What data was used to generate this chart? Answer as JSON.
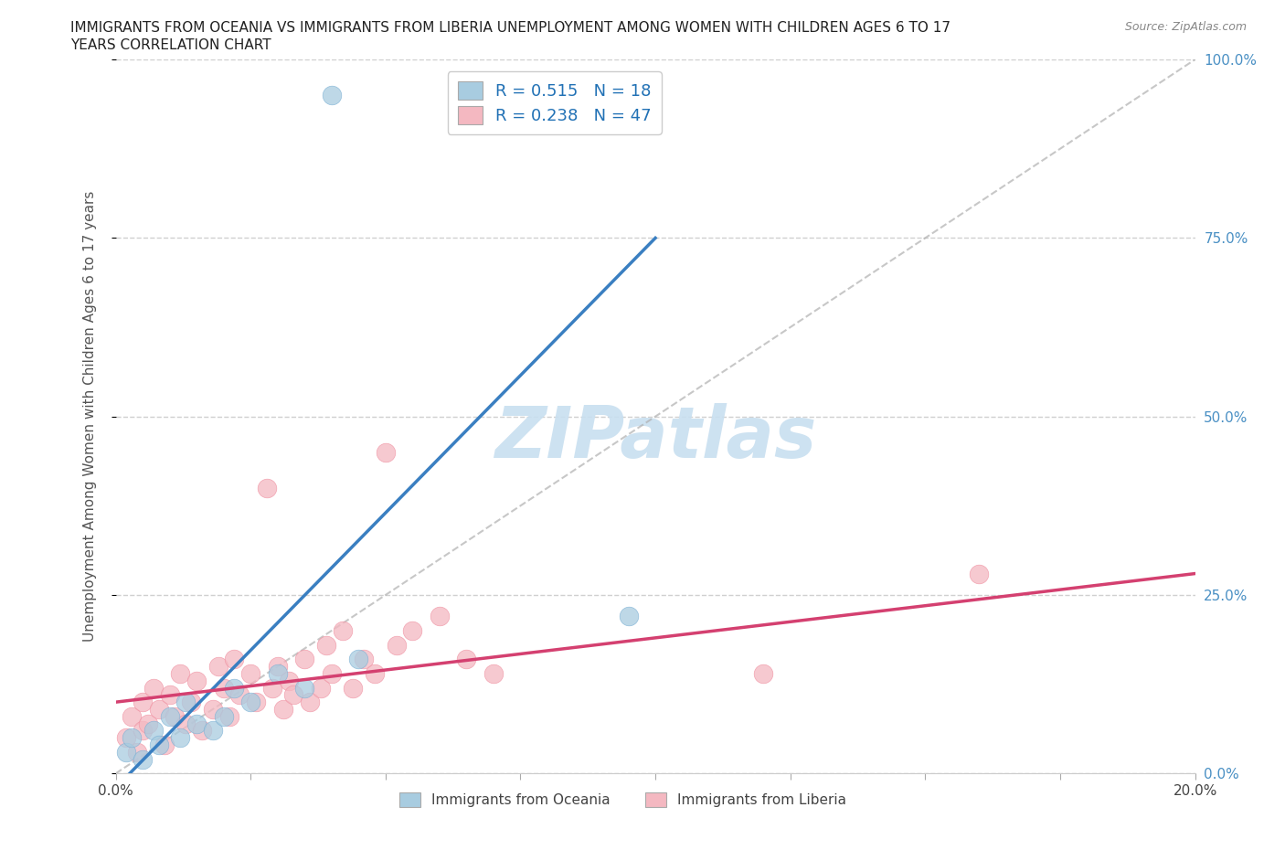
{
  "title_line1": "IMMIGRANTS FROM OCEANIA VS IMMIGRANTS FROM LIBERIA UNEMPLOYMENT AMONG WOMEN WITH CHILDREN AGES 6 TO 17",
  "title_line2": "YEARS CORRELATION CHART",
  "source": "Source: ZipAtlas.com",
  "ylabel": "Unemployment Among Women with Children Ages 6 to 17 years",
  "xlabel_oceania": "Immigrants from Oceania",
  "xlabel_liberia": "Immigrants from Liberia",
  "xlim": [
    0.0,
    0.2
  ],
  "ylim": [
    0.0,
    1.0
  ],
  "yticks": [
    0.0,
    0.25,
    0.5,
    0.75,
    1.0
  ],
  "ytick_labels": [
    "0.0%",
    "25.0%",
    "50.0%",
    "75.0%",
    "100.0%"
  ],
  "xticks": [
    0.0,
    0.025,
    0.05,
    0.075,
    0.1,
    0.125,
    0.15,
    0.175,
    0.2
  ],
  "xtick_labels_show": [
    "0.0%",
    "",
    "",
    "",
    "",
    "",
    "",
    "",
    "20.0%"
  ],
  "oceania_R": 0.515,
  "oceania_N": 18,
  "liberia_R": 0.238,
  "liberia_N": 47,
  "oceania_color": "#a8cce0",
  "liberia_color": "#f4b8c1",
  "oceania_edge": "#7bafd4",
  "liberia_edge": "#f08fa0",
  "trend_oceania_color": "#3a7fc1",
  "trend_liberia_color": "#d44070",
  "ref_line_color": "#b0b0b0",
  "watermark_color": "#c8dff0",
  "grid_color": "#d0d0d0",
  "right_axis_color": "#4a90c4",
  "oceania_points_x": [
    0.002,
    0.003,
    0.005,
    0.007,
    0.008,
    0.01,
    0.012,
    0.013,
    0.015,
    0.018,
    0.02,
    0.022,
    0.025,
    0.03,
    0.035,
    0.04,
    0.045,
    0.095
  ],
  "oceania_points_y": [
    0.03,
    0.05,
    0.02,
    0.06,
    0.04,
    0.08,
    0.05,
    0.1,
    0.07,
    0.06,
    0.08,
    0.12,
    0.1,
    0.14,
    0.12,
    0.95,
    0.16,
    0.22
  ],
  "liberia_points_x": [
    0.002,
    0.003,
    0.004,
    0.005,
    0.005,
    0.006,
    0.007,
    0.008,
    0.009,
    0.01,
    0.011,
    0.012,
    0.013,
    0.014,
    0.015,
    0.016,
    0.018,
    0.019,
    0.02,
    0.021,
    0.022,
    0.023,
    0.025,
    0.026,
    0.028,
    0.029,
    0.03,
    0.031,
    0.032,
    0.033,
    0.035,
    0.036,
    0.038,
    0.039,
    0.04,
    0.042,
    0.044,
    0.046,
    0.048,
    0.05,
    0.052,
    0.055,
    0.06,
    0.065,
    0.07,
    0.12,
    0.16
  ],
  "liberia_points_y": [
    0.05,
    0.08,
    0.03,
    0.1,
    0.06,
    0.07,
    0.12,
    0.09,
    0.04,
    0.11,
    0.08,
    0.14,
    0.07,
    0.1,
    0.13,
    0.06,
    0.09,
    0.15,
    0.12,
    0.08,
    0.16,
    0.11,
    0.14,
    0.1,
    0.4,
    0.12,
    0.15,
    0.09,
    0.13,
    0.11,
    0.16,
    0.1,
    0.12,
    0.18,
    0.14,
    0.2,
    0.12,
    0.16,
    0.14,
    0.45,
    0.18,
    0.2,
    0.22,
    0.16,
    0.14,
    0.14,
    0.28
  ],
  "trend_oceania_x0": 0.0,
  "trend_oceania_y0": -0.02,
  "trend_oceania_x1": 0.1,
  "trend_oceania_y1": 0.75,
  "trend_liberia_x0": 0.0,
  "trend_liberia_y0": 0.1,
  "trend_liberia_x1": 0.2,
  "trend_liberia_y1": 0.28
}
